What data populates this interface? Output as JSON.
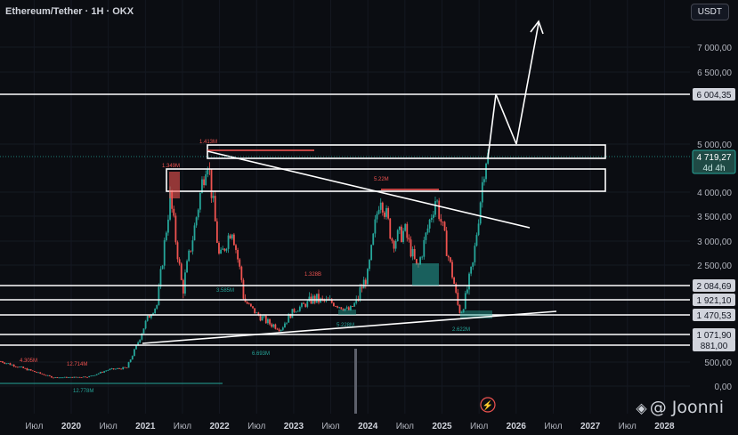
{
  "header": {
    "title": "Ethereum/Tether · 1H · OKX",
    "unit": "USDT"
  },
  "watermark": {
    "text": "@ Joonni"
  },
  "colors": {
    "background": "#0b0d12",
    "up": "#26a69a",
    "down": "#ef5350",
    "annotation": "#ffffff",
    "label_bg": "#d1d4dc"
  },
  "chart_data": {
    "type": "candlestick",
    "title": "Ethereum/Tether · 1H · OKX",
    "unit": "USDT",
    "y_axis": {
      "ticks": [
        "7 000,00",
        "6 500,00",
        "5 000,00",
        "4 000,00",
        "3 500,00",
        "3 000,00",
        "2 500,00",
        "500,00",
        "0,00"
      ],
      "tick_values": [
        7000,
        6500,
        5000,
        4000,
        3500,
        3000,
        2500,
        500,
        0
      ]
    },
    "x_axis": {
      "labels": [
        "Июл",
        "2020",
        "Июл",
        "2021",
        "Июл",
        "2022",
        "Июл",
        "2023",
        "Июл",
        "2024",
        "Июл",
        "2025",
        "Июл",
        "2026",
        "Июл",
        "2027",
        "Июл",
        "2028"
      ],
      "years": [
        "2020",
        "2021",
        "2022",
        "2023",
        "2024",
        "2025",
        "2026",
        "2027",
        "2028"
      ]
    },
    "price_levels": [
      {
        "label": "6 004,35",
        "value": 6004.35
      },
      {
        "label": "2 084,69",
        "value": 2084.69
      },
      {
        "label": "1 921,10",
        "value": 1921.1
      },
      {
        "label": "1 470,53",
        "value": 1470.53
      },
      {
        "label": "1 071,90",
        "value": 1071.9
      },
      {
        "label": "881,00",
        "value": 881.0
      }
    ],
    "current_price": {
      "label": "4 719,27",
      "countdown": "4d 4h",
      "value": 4719.27
    },
    "volume_annotations": [
      "4.305M",
      "12.714M",
      "12.778M",
      "1.349M",
      "1.413M",
      "3.585M",
      "6.693M",
      "1.328B",
      "5.228M",
      "5.22M",
      "2.622M"
    ],
    "series": [
      {
        "date": [
          "2019-07",
          "2019-10",
          "2020-01",
          "2020-04",
          "2020-07",
          "2020-10",
          "2021-01",
          "2021-03",
          "2021-05",
          "2021-07",
          "2021-09",
          "2021-11",
          "2022-01",
          "2022-03",
          "2022-05",
          "2022-07",
          "2022-09",
          "2022-11",
          "2023-01",
          "2023-04",
          "2023-07",
          "2023-10",
          "2024-01",
          "2024-03",
          "2024-05",
          "2024-07",
          "2024-09",
          "2024-12",
          "2025-02",
          "2025-04",
          "2025-06",
          "2025-08"
        ],
        "close": [
          300,
          180,
          180,
          200,
          340,
          380,
          1300,
          1800,
          3900,
          2000,
          3300,
          4800,
          2600,
          3300,
          1900,
          1500,
          1300,
          1200,
          1600,
          1900,
          1850,
          1600,
          2300,
          4000,
          3000,
          3200,
          2400,
          3900,
          2700,
          1500,
          2500,
          4719
        ]
      }
    ],
    "levels_drawn": [
      "resistance zone 4 200–4 600",
      "resistance zone 4 800–5 000",
      "projection to 6 004,35 and beyond 7 000"
    ]
  }
}
